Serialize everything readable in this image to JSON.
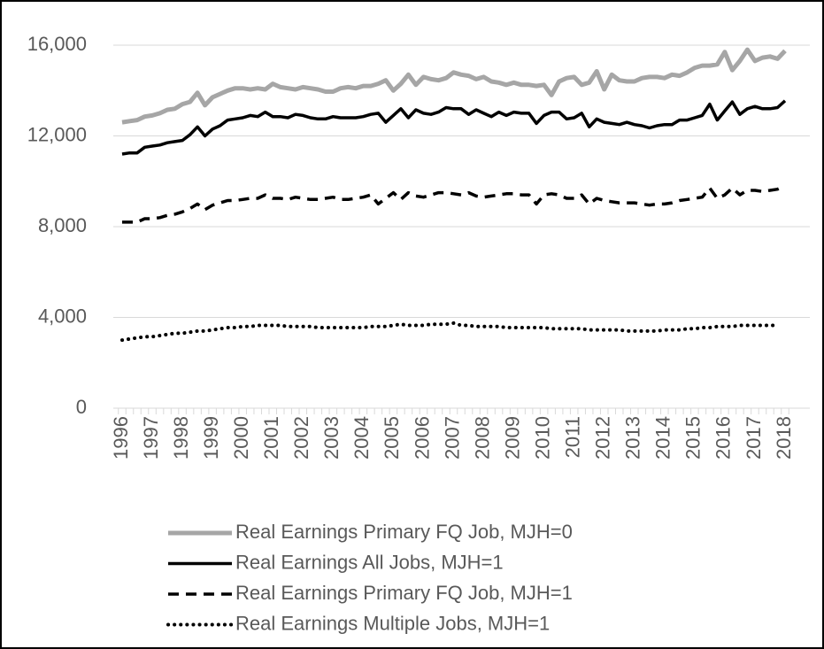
{
  "chart_data": {
    "type": "line",
    "categories": [
      "1996",
      null,
      null,
      null,
      "1997",
      null,
      null,
      null,
      "1998",
      null,
      null,
      null,
      "1999",
      null,
      null,
      null,
      "2000",
      null,
      null,
      null,
      "2001",
      null,
      null,
      null,
      "2002",
      null,
      null,
      null,
      "2003",
      null,
      null,
      null,
      "2004",
      null,
      null,
      null,
      "2005",
      null,
      null,
      null,
      "2006",
      null,
      null,
      null,
      "2007",
      null,
      null,
      null,
      "2008",
      null,
      null,
      null,
      "2009",
      null,
      null,
      null,
      "2010",
      null,
      null,
      null,
      "2011",
      null,
      null,
      null,
      "2012",
      null,
      null,
      null,
      "2013",
      null,
      null,
      null,
      "2014",
      null,
      null,
      null,
      "2015",
      null,
      null,
      null,
      "2016",
      null,
      null,
      null,
      "2017",
      null,
      null,
      null,
      "2018"
    ],
    "series": [
      {
        "name": "Real Earnings Primary FQ Job, MJH=0",
        "color": "#a6a6a6",
        "style": "solid",
        "values": [
          12600,
          12650,
          12700,
          12850,
          12900,
          13000,
          13150,
          13200,
          13400,
          13500,
          13900,
          13350,
          13700,
          13850,
          14000,
          14100,
          14100,
          14050,
          14100,
          14050,
          14300,
          14150,
          14100,
          14050,
          14150,
          14100,
          14050,
          13950,
          13950,
          14100,
          14150,
          14100,
          14200,
          14200,
          14300,
          14450,
          14000,
          14300,
          14700,
          14250,
          14600,
          14500,
          14450,
          14550,
          14800,
          14700,
          14650,
          14500,
          14600,
          14400,
          14350,
          14250,
          14350,
          14250,
          14250,
          14200,
          14250,
          13800,
          14400,
          14550,
          14600,
          14250,
          14350,
          14850,
          14050,
          14700,
          14450,
          14400,
          14400,
          14550,
          14600,
          14600,
          14550,
          14700,
          14650,
          14800,
          15000,
          15100,
          15100,
          15150,
          15700,
          14900,
          15300,
          15800,
          15300,
          15450,
          15500,
          15400,
          15750
        ]
      },
      {
        "name": "Real Earnings All Jobs, MJH=1",
        "color": "#000000",
        "style": "solid",
        "values": [
          11200,
          11250,
          11250,
          11500,
          11550,
          11600,
          11700,
          11750,
          11800,
          12050,
          12400,
          12000,
          12300,
          12450,
          12700,
          12750,
          12800,
          12900,
          12850,
          13050,
          12850,
          12850,
          12800,
          12950,
          12900,
          12800,
          12750,
          12750,
          12850,
          12800,
          12800,
          12800,
          12850,
          12950,
          13000,
          12600,
          12900,
          13200,
          12800,
          13150,
          13000,
          12950,
          13050,
          13250,
          13200,
          13200,
          12950,
          13150,
          13000,
          12850,
          13050,
          12900,
          13050,
          13000,
          13000,
          12550,
          12900,
          13050,
          13050,
          12750,
          12800,
          13000,
          12400,
          12750,
          12600,
          12550,
          12500,
          12600,
          12500,
          12450,
          12350,
          12450,
          12500,
          12500,
          12700,
          12700,
          12800,
          12900,
          13400,
          12700,
          13100,
          13500,
          12950,
          13200,
          13300,
          13200,
          13200,
          13250,
          13550
        ]
      },
      {
        "name": "Real Earnings Primary FQ Job, MJH=1",
        "color": "#000000",
        "style": "dashed",
        "values": [
          8200,
          8200,
          8200,
          8350,
          8350,
          8400,
          8500,
          8550,
          8650,
          8800,
          9000,
          8750,
          8950,
          9050,
          9150,
          9150,
          9200,
          9250,
          9250,
          9400,
          9250,
          9250,
          9200,
          9300,
          9250,
          9200,
          9200,
          9250,
          9300,
          9200,
          9200,
          9250,
          9300,
          9400,
          9000,
          9250,
          9500,
          9200,
          9500,
          9350,
          9300,
          9400,
          9500,
          9500,
          9450,
          9400,
          9500,
          9350,
          9300,
          9350,
          9400,
          9450,
          9450,
          9400,
          9400,
          9000,
          9400,
          9450,
          9400,
          9250,
          9250,
          9400,
          9000,
          9250,
          9150,
          9100,
          9050,
          9050,
          9050,
          9000,
          8950,
          9000,
          9000,
          9050,
          9150,
          9200,
          9250,
          9300,
          9700,
          9250,
          9400,
          9700,
          9400,
          9600,
          9600,
          9550,
          9600,
          9650,
          9800
        ]
      },
      {
        "name": "Real Earnings Multiple Jobs, MJH=1",
        "color": "#000000",
        "style": "dotted",
        "values": [
          3000,
          3050,
          3100,
          3150,
          3150,
          3200,
          3250,
          3300,
          3300,
          3350,
          3400,
          3400,
          3450,
          3500,
          3550,
          3550,
          3600,
          3600,
          3650,
          3650,
          3650,
          3650,
          3600,
          3600,
          3600,
          3600,
          3550,
          3550,
          3550,
          3550,
          3550,
          3550,
          3550,
          3600,
          3600,
          3600,
          3650,
          3700,
          3650,
          3650,
          3650,
          3700,
          3700,
          3700,
          3750,
          3650,
          3650,
          3600,
          3600,
          3600,
          3600,
          3550,
          3550,
          3550,
          3550,
          3550,
          3550,
          3500,
          3500,
          3500,
          3500,
          3500,
          3450,
          3450,
          3450,
          3450,
          3450,
          3400,
          3400,
          3400,
          3400,
          3400,
          3450,
          3450,
          3450,
          3500,
          3500,
          3550,
          3550,
          3600,
          3600,
          3600,
          3650,
          3650,
          3650,
          3650,
          3650,
          3650,
          null
        ]
      }
    ],
    "ylim": [
      0,
      16000
    ],
    "yticks": [
      0,
      {
        "value": 4000,
        "label": "4,000"
      },
      {
        "value": 8000,
        "label": "8,000"
      },
      {
        "value": 12000,
        "label": "12,000"
      },
      {
        "value": 16000,
        "label": "16,000"
      }
    ],
    "grid": true,
    "legend": "bottom"
  }
}
